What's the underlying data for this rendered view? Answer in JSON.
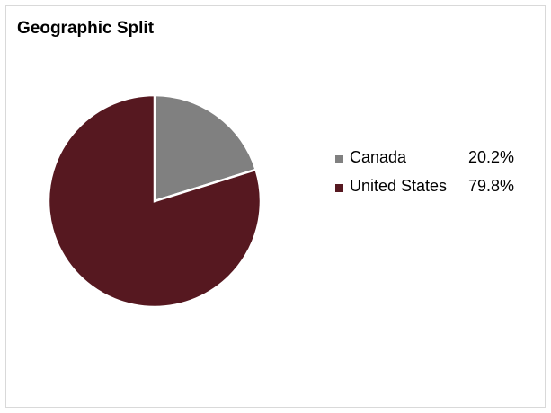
{
  "chart_data": {
    "type": "pie",
    "title": "Geographic Split",
    "series": [
      {
        "values": [
          20.2,
          79.8
        ]
      }
    ],
    "categories": [
      "Canada",
      "United States"
    ],
    "values": [
      20.2,
      79.8
    ],
    "value_labels": [
      "20.2%",
      "79.8%"
    ],
    "colors": [
      "#808080",
      "#561820"
    ],
    "legend_position": "right"
  }
}
